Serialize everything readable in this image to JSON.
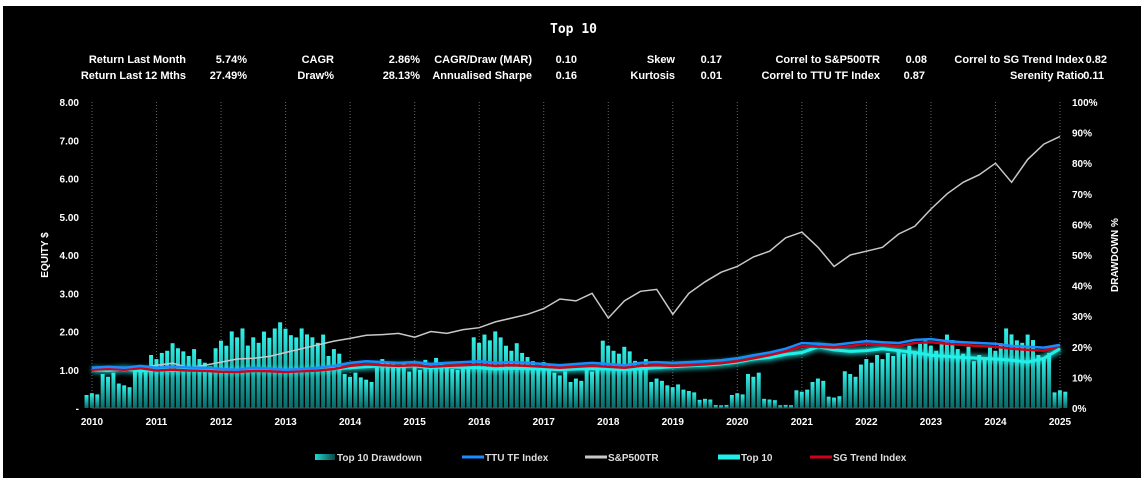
{
  "title": "Top 10",
  "stats": [
    {
      "label": "Return Last Month",
      "value": "5.74%"
    },
    {
      "label": "Return Last 12 Mths",
      "value": "27.49%"
    },
    {
      "label": "CAGR",
      "value": "2.86%"
    },
    {
      "label": "Draw%",
      "value": "28.13%"
    },
    {
      "label": "CAGR/Draw (MAR)",
      "value": "0.10"
    },
    {
      "label": "Annualised Sharpe",
      "value": "0.16"
    },
    {
      "label": "Skew",
      "value": "0.17"
    },
    {
      "label": "Kurtosis",
      "value": "0.01"
    },
    {
      "label": "Correl to S&P500TR",
      "value": "0.08"
    },
    {
      "label": "Correl to TTU TF Index",
      "value": "0.87"
    },
    {
      "label": "Correl to SG Trend Index",
      "value": "0.82"
    },
    {
      "label": "Serenity Ratio",
      "value": "0.11"
    }
  ],
  "chart_data": {
    "type": "line",
    "title": "Top 10",
    "xlabel": "",
    "ylabel": "EQUITY $",
    "y2label": "DRAWDOWN %",
    "ylim": [
      0,
      8
    ],
    "y2lim": [
      0,
      100
    ],
    "yticks": [
      "-",
      "1.00",
      "2.00",
      "3.00",
      "4.00",
      "5.00",
      "6.00",
      "7.00",
      "8.00"
    ],
    "y2ticks": [
      "0%",
      "10%",
      "20%",
      "30%",
      "40%",
      "50%",
      "60%",
      "70%",
      "80%",
      "90%",
      "100%"
    ],
    "xticks": [
      "2010",
      "2011",
      "2012",
      "2013",
      "2014",
      "2015",
      "2016",
      "2017",
      "2018",
      "2019",
      "2020",
      "2021",
      "2022",
      "2023",
      "2024",
      "2025"
    ],
    "x_start": 2010,
    "x_end": 2025,
    "x_step": 0.25,
    "grid": "vertical",
    "legend_position": "bottom",
    "series": [
      {
        "name": "Top 10 Drawdown",
        "type": "bar",
        "axis": "right",
        "color": "#20d8d0",
        "values": [
          5,
          12,
          8,
          14,
          18,
          22,
          20,
          16,
          22,
          26,
          24,
          27,
          28,
          26,
          24,
          20,
          12,
          10,
          16,
          15,
          14,
          17,
          15,
          14,
          24,
          26,
          22,
          18,
          15,
          12,
          10,
          14,
          22,
          20,
          16,
          10,
          8,
          6,
          3,
          1,
          5,
          12,
          3,
          1,
          6,
          10,
          4,
          12,
          16,
          18,
          20,
          22,
          22,
          24,
          20,
          18,
          22,
          26,
          24,
          18,
          6
        ]
      },
      {
        "name": "TTU TF Index",
        "type": "line",
        "axis": "left",
        "color": "#1a8cff",
        "values": [
          1.05,
          1.08,
          1.05,
          1.1,
          1.05,
          1.08,
          1.06,
          1.05,
          1.02,
          1.0,
          1.05,
          1.03,
          1.0,
          1.02,
          1.05,
          1.1,
          1.18,
          1.22,
          1.2,
          1.18,
          1.2,
          1.15,
          1.18,
          1.2,
          1.22,
          1.18,
          1.2,
          1.18,
          1.15,
          1.12,
          1.15,
          1.18,
          1.15,
          1.12,
          1.18,
          1.2,
          1.18,
          1.2,
          1.22,
          1.25,
          1.3,
          1.38,
          1.45,
          1.55,
          1.7,
          1.68,
          1.65,
          1.7,
          1.75,
          1.72,
          1.7,
          1.78,
          1.8,
          1.75,
          1.72,
          1.7,
          1.68,
          1.62,
          1.6,
          1.58,
          1.65
        ]
      },
      {
        "name": "S&P500TR",
        "type": "line",
        "axis": "left",
        "color": "#c8c8c8",
        "values": [
          1.0,
          1.02,
          0.98,
          1.05,
          1.12,
          1.17,
          1.05,
          1.12,
          1.2,
          1.28,
          1.3,
          1.35,
          1.45,
          1.55,
          1.65,
          1.75,
          1.82,
          1.9,
          1.92,
          1.95,
          1.85,
          2.0,
          1.95,
          2.05,
          2.1,
          2.25,
          2.35,
          2.45,
          2.6,
          2.85,
          2.8,
          3.0,
          2.35,
          2.8,
          3.05,
          3.1,
          2.45,
          3.0,
          3.3,
          3.55,
          3.7,
          3.95,
          4.1,
          4.45,
          4.6,
          4.2,
          3.7,
          4.0,
          4.1,
          4.2,
          4.55,
          4.75,
          5.2,
          5.6,
          5.9,
          6.1,
          6.4,
          5.9,
          6.5,
          6.9,
          7.1
        ]
      },
      {
        "name": "Top 10",
        "type": "line",
        "axis": "left",
        "color": "#20f0e8",
        "values": [
          1.0,
          0.98,
          1.02,
          0.97,
          1.0,
          0.98,
          1.02,
          1.0,
          0.98,
          0.97,
          1.0,
          0.99,
          0.97,
          0.98,
          1.0,
          1.02,
          1.05,
          1.08,
          1.1,
          1.08,
          1.1,
          1.05,
          1.08,
          1.06,
          1.05,
          1.02,
          1.04,
          1.03,
          1.02,
          1.0,
          1.02,
          1.03,
          1.02,
          1.0,
          1.03,
          1.05,
          1.08,
          1.1,
          1.12,
          1.15,
          1.2,
          1.28,
          1.32,
          1.4,
          1.45,
          1.6,
          1.52,
          1.48,
          1.5,
          1.55,
          1.5,
          1.45,
          1.38,
          1.35,
          1.32,
          1.3,
          1.28,
          1.25,
          1.2,
          1.3,
          1.55
        ]
      },
      {
        "name": "SG Trend Index",
        "type": "line",
        "axis": "left",
        "color": "#d0021b",
        "values": [
          1.0,
          1.02,
          1.0,
          1.04,
          0.98,
          1.0,
          0.98,
          0.97,
          0.95,
          0.94,
          0.97,
          0.96,
          0.94,
          0.96,
          0.98,
          1.02,
          1.1,
          1.14,
          1.12,
          1.1,
          1.12,
          1.08,
          1.1,
          1.12,
          1.14,
          1.1,
          1.12,
          1.1,
          1.08,
          1.05,
          1.08,
          1.1,
          1.08,
          1.05,
          1.1,
          1.12,
          1.1,
          1.12,
          1.14,
          1.17,
          1.22,
          1.3,
          1.38,
          1.48,
          1.62,
          1.6,
          1.58,
          1.62,
          1.68,
          1.65,
          1.62,
          1.7,
          1.72,
          1.68,
          1.65,
          1.62,
          1.6,
          1.55,
          1.52,
          1.5,
          1.62
        ]
      }
    ]
  }
}
